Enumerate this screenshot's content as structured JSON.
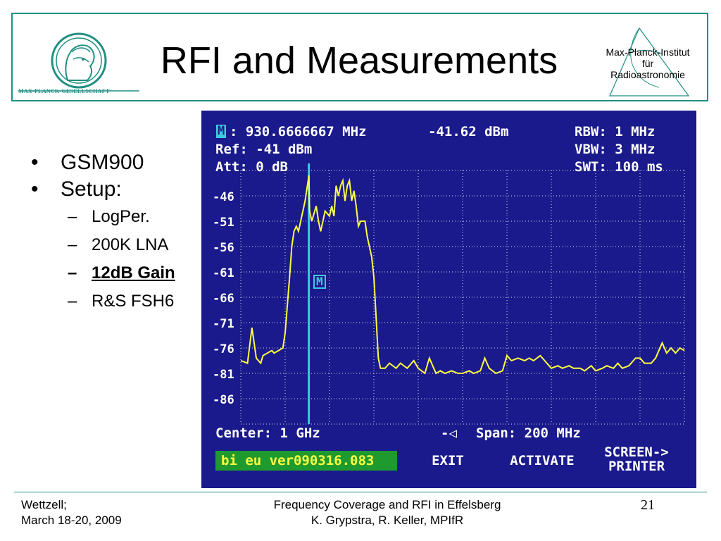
{
  "slide": {
    "title": "RFI and Measurements",
    "mpg_logo_text": "MAX-PLANCK-GESELLSCHAFT",
    "mpi_logo": {
      "line1": "Max-Planck-Institut",
      "line2": "für",
      "line3": "Radioastronomie"
    },
    "bullets": [
      {
        "text": "GSM900"
      },
      {
        "text": "Setup:",
        "subitems": [
          "LogPer.",
          "200K LNA",
          "12dB Gain",
          "R&S FSH6"
        ]
      }
    ],
    "footer": {
      "left_line1": "Wettzell;",
      "left_line2": "March 18-20, 2009",
      "center_line1": "Frequency Coverage and RFI in Effelsberg",
      "center_line2": "K. Grypstra, R. Keller, MPIfR",
      "page_number": "21"
    }
  },
  "analyzer": {
    "marker_symbol": "M",
    "marker_freq": ": 930.6666667 MHz",
    "marker_level": "-41.62 dBm",
    "rbw": "RBW: 1 MHz",
    "ref": "Ref: -41 dBm",
    "vbw": "VBW: 3 MHz",
    "att": "Att: 0 dB",
    "swt": "SWT: 100 ms",
    "y_tick_labels": [
      "-46",
      "-51",
      "-56",
      "-61",
      "-66",
      "-71",
      "-76",
      "-81",
      "-86"
    ],
    "center": "Center: 1 GHz",
    "span_arrow": "-◁",
    "span": "Span: 200 MHz",
    "softkeys": {
      "filename": "bi eu ver090316.083",
      "exit": "EXIT",
      "activate": "ACTIVATE",
      "screen_printer_line1": "SCREEN->",
      "screen_printer_line2": "PRINTER"
    },
    "colors": {
      "background": "#1a1a8c",
      "trace": "#ffff40",
      "marker_line": "#3ec8e0",
      "filename_bg": "#1f9a2e"
    }
  },
  "chart_data": {
    "type": "line",
    "title": "",
    "xlabel": "",
    "ylabel": "",
    "xlim": [
      900,
      1100
    ],
    "ylim": [
      -91,
      -41
    ],
    "y_ticks": [
      -46,
      -51,
      -56,
      -61,
      -66,
      -71,
      -76,
      -81,
      -86
    ],
    "x_unit": "MHz",
    "y_unit": "dBm",
    "grid": true,
    "series": [
      {
        "x": [
          900,
          903,
          905,
          907,
          909,
          910,
          912,
          914,
          915,
          917,
          919,
          920,
          922,
          923,
          924,
          925,
          926,
          928,
          929,
          930.7,
          931,
          932,
          934,
          935,
          936,
          937,
          938,
          940,
          941,
          942,
          943,
          944,
          945,
          946,
          947,
          948,
          949,
          950,
          951,
          952,
          953,
          954,
          955,
          956,
          957,
          958,
          959,
          960,
          961,
          962,
          963,
          965,
          967,
          970,
          972,
          975,
          978,
          980,
          983,
          985,
          988,
          990,
          992,
          995,
          998,
          1000,
          1003,
          1005,
          1008,
          1010,
          1012,
          1015,
          1018,
          1020,
          1022,
          1025,
          1028,
          1030,
          1032,
          1035,
          1038,
          1040,
          1043,
          1045,
          1048,
          1050,
          1053,
          1055,
          1058,
          1060,
          1063,
          1065,
          1068,
          1070,
          1072,
          1075,
          1078,
          1080,
          1082,
          1085,
          1087,
          1088,
          1090,
          1092,
          1094,
          1096,
          1098,
          1100
        ],
        "y": [
          -78.5,
          -79,
          -72,
          -78,
          -79,
          -77.5,
          -77,
          -76.5,
          -77,
          -76.5,
          -76,
          -73,
          -62,
          -56,
          -53,
          -52,
          -53,
          -49,
          -47,
          -42,
          -49,
          -51,
          -48,
          -51,
          -53,
          -51,
          -49,
          -50,
          -48,
          -50,
          -44,
          -46,
          -44,
          -43,
          -47,
          -44,
          -43,
          -47,
          -45,
          -48,
          -52,
          -51,
          -51,
          -51,
          -54,
          -56,
          -58,
          -62,
          -70,
          -78,
          -80,
          -80,
          -79,
          -80,
          -79,
          -80,
          -78.5,
          -80,
          -81,
          -78,
          -81,
          -80.5,
          -81,
          -80.5,
          -81,
          -81,
          -80.5,
          -81,
          -80.5,
          -78,
          -80,
          -81,
          -80.5,
          -77.5,
          -78.5,
          -78,
          -78.5,
          -78,
          -78.5,
          -77.5,
          -79,
          -80,
          -79.5,
          -80,
          -79.5,
          -80,
          -80,
          -80.5,
          -79.5,
          -80.5,
          -80,
          -79.5,
          -80,
          -79,
          -80,
          -79.5,
          -78,
          -78,
          -79,
          -79,
          -78,
          -77,
          -75,
          -77,
          -76,
          -77,
          -76,
          -76.5
        ]
      }
    ],
    "marker": {
      "x": 930.6666667,
      "y": -41.62
    }
  }
}
